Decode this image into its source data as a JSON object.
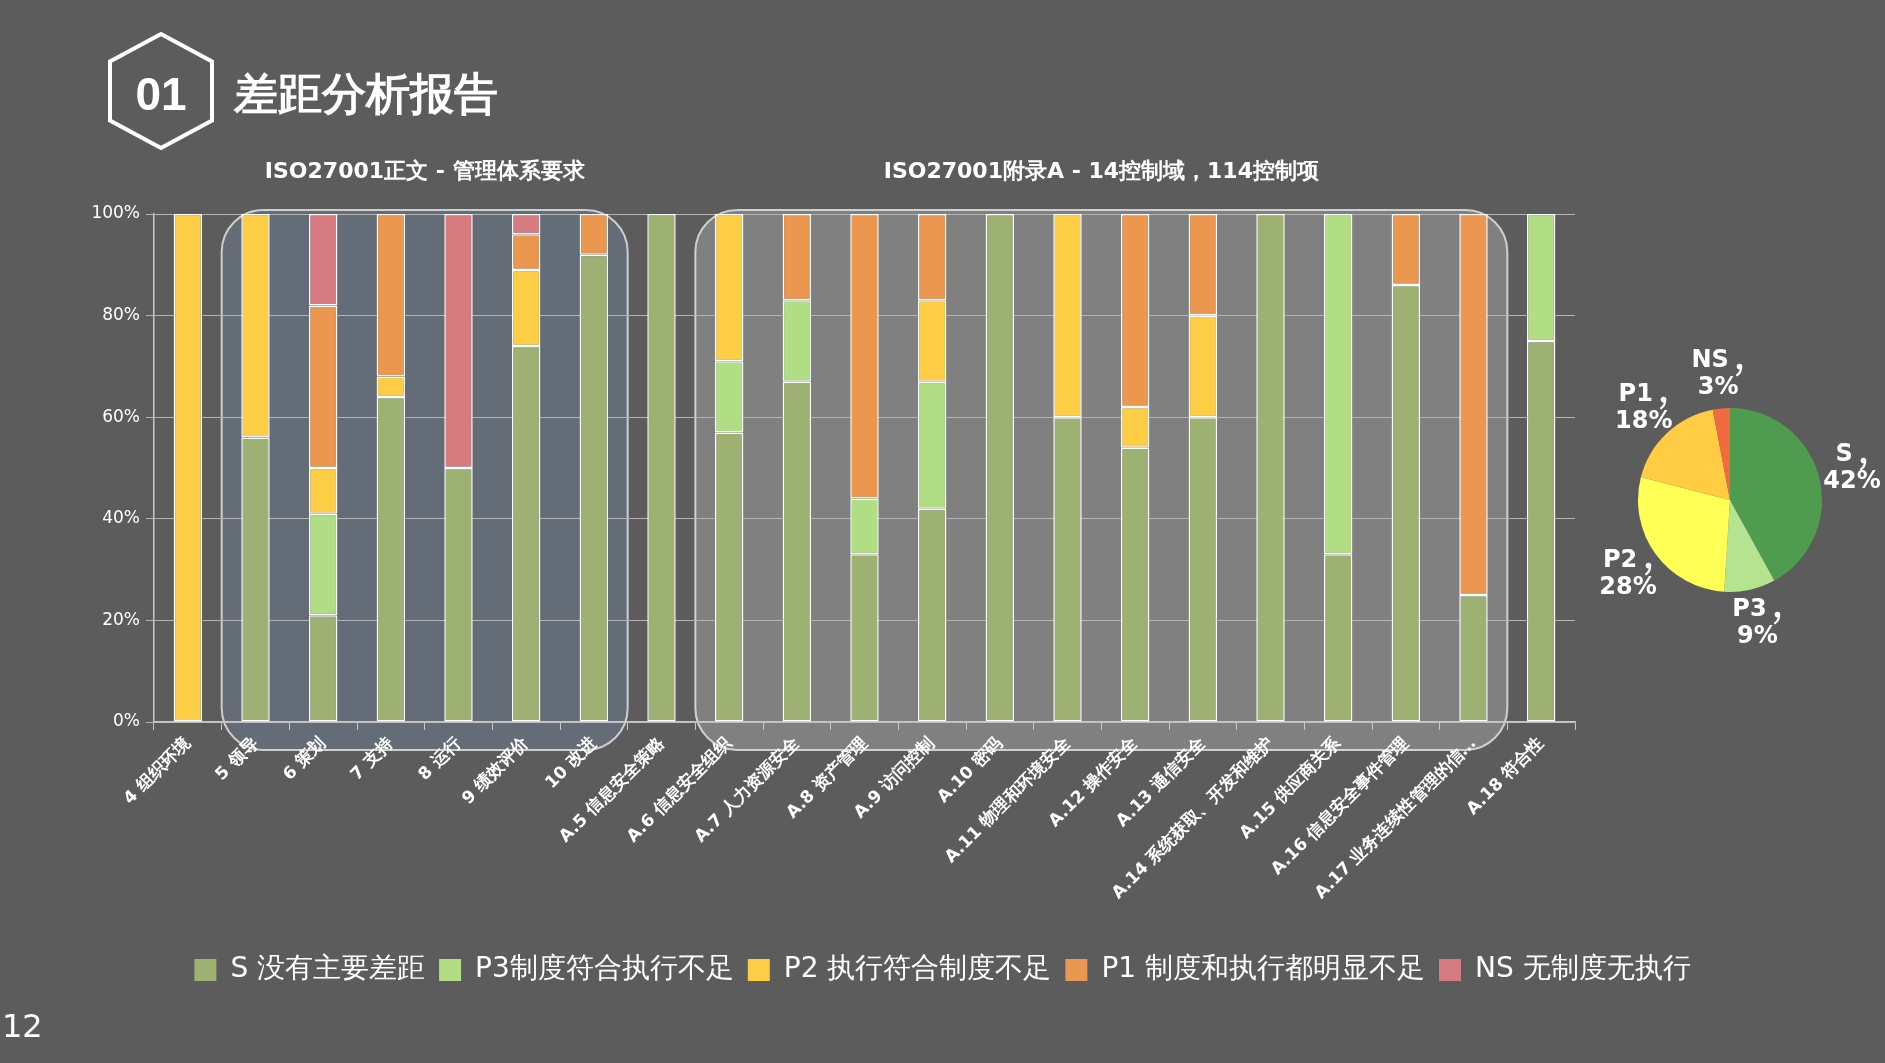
{
  "chart_data": [
    {
      "type": "bar",
      "title": "差距分析报告",
      "categories": [
        "4 组织环境",
        "5 领导",
        "6 策划",
        "7 支持",
        "8 运行",
        "9 绩效评价",
        "10 改进",
        "A.5 信息安全策略",
        "A.6 信息安全组织",
        "A.7 人力资源安全",
        "A.8 资产管理",
        "A.9 访问控制",
        "A.10 密码",
        "A.11 物理和环境安全",
        "A.12 操作安全",
        "A.13 通信安全",
        "A.14 系统获取、开发和维护",
        "A.15 供应商关系",
        "A.16 信息安全事件管理",
        "A.17 业务连续性管理的信…",
        "A.18 符合性"
      ],
      "stacked": true,
      "series": [
        {
          "name": "S 没有主要差距",
          "color": "#9db272",
          "values": [
            null,
            56,
            21,
            64,
            50,
            74,
            92,
            100,
            57,
            67,
            33,
            42,
            100,
            60,
            54,
            60,
            100,
            33,
            86,
            25,
            75
          ]
        },
        {
          "name": "P3制度符合执行不足",
          "color": "#b1de84",
          "values": [
            null,
            null,
            20,
            null,
            null,
            null,
            null,
            null,
            14,
            16,
            11,
            25,
            null,
            null,
            null,
            null,
            null,
            67,
            null,
            null,
            25
          ]
        },
        {
          "name": "P2 执行符合制度不足",
          "color": "#fecd46",
          "values": [
            100,
            44,
            9,
            4,
            null,
            15,
            null,
            null,
            29,
            null,
            null,
            16,
            null,
            40,
            8,
            20,
            null,
            null,
            null,
            null,
            null
          ]
        },
        {
          "name": "P1 制度和执行都明显不足",
          "color": "#ec9750",
          "values": [
            null,
            null,
            32,
            32,
            null,
            7,
            8,
            null,
            null,
            17,
            56,
            17,
            null,
            null,
            38,
            20,
            null,
            null,
            14,
            75,
            null
          ]
        },
        {
          "name": "NS 无制度无执行",
          "color": "#d67c80",
          "values": [
            null,
            null,
            18,
            null,
            50,
            4,
            null,
            null,
            null,
            null,
            null,
            null,
            null,
            null,
            null,
            null,
            null,
            null,
            null,
            null,
            null
          ]
        }
      ],
      "ylim": [
        0,
        100
      ],
      "yticks": [
        {
          "value": 0,
          "label": "0%"
        },
        {
          "value": 20,
          "label": "20%"
        },
        {
          "value": 40,
          "label": "40%"
        },
        {
          "value": 60,
          "label": "60%"
        },
        {
          "value": 80,
          "label": "80%"
        },
        {
          "value": 100,
          "label": "100%"
        }
      ],
      "grid": "y",
      "legend": "bottom",
      "bands": [
        {
          "axis": "x",
          "from": "5 领导",
          "to": "10 改进",
          "label": "ISO27001正文 - 管理体系要求",
          "color": "#646c78"
        },
        {
          "axis": "x",
          "from": "A.6 信息安全组织",
          "to": "A.17 业务连续性管理的信…",
          "label": "ISO27001附录A - 14控制域，114控制项",
          "color": "#808080"
        }
      ],
      "annotations": [
        "01",
        "12"
      ]
    },
    {
      "type": "pie",
      "categories": [
        "S",
        "P3",
        "P2",
        "P1",
        "NS"
      ],
      "values": [
        42,
        9,
        28,
        18,
        3
      ],
      "colors": [
        "#4f9b4f",
        "#b5e38f",
        "#ffff55",
        "#ffcc44",
        "#f26a40"
      ],
      "value_labels": [
        "42%",
        "9%",
        "28%",
        "18%",
        "3%"
      ]
    }
  ]
}
